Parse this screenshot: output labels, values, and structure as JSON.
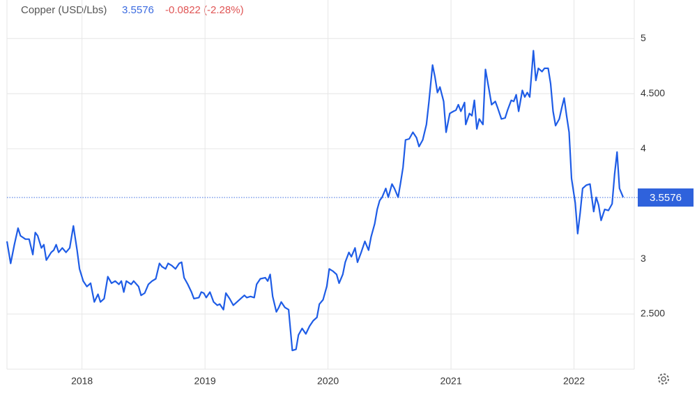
{
  "chart_data": {
    "type": "line",
    "title": "Copper (USD/Lbs)",
    "price": 3.5576,
    "change": "-0.0822 (-2.28%)",
    "xlim": [
      2017.39,
      2022.49
    ],
    "xticks": [
      2018,
      2019,
      2020,
      2021,
      2022
    ],
    "ylim": [
      2,
      5.35
    ],
    "yticks": [
      {
        "value": 2.5,
        "label": "2.500"
      },
      3,
      {
        "value": 4.5,
        "label": "4.500"
      },
      4,
      5
    ],
    "grid": true,
    "x": [
      2017.39,
      2017.42,
      2017.45,
      2017.48,
      2017.5,
      2017.54,
      2017.57,
      2017.6,
      2017.62,
      2017.64,
      2017.67,
      2017.69,
      2017.71,
      2017.75,
      2017.77,
      2017.79,
      2017.81,
      2017.84,
      2017.87,
      2017.9,
      2017.93,
      2017.96,
      2017.98,
      2018.01,
      2018.04,
      2018.07,
      2018.1,
      2018.13,
      2018.15,
      2018.18,
      2018.21,
      2018.24,
      2018.27,
      2018.3,
      2018.32,
      2018.34,
      2018.36,
      2018.4,
      2018.42,
      2018.46,
      2018.48,
      2018.51,
      2018.54,
      2018.57,
      2018.6,
      2018.63,
      2018.65,
      2018.68,
      2018.7,
      2018.73,
      2018.76,
      2018.79,
      2018.81,
      2018.83,
      2018.86,
      2018.89,
      2018.91,
      2018.95,
      2018.97,
      2018.99,
      2019.01,
      2019.04,
      2019.07,
      2019.1,
      2019.12,
      2019.15,
      2019.17,
      2019.2,
      2019.23,
      2019.26,
      2019.29,
      2019.32,
      2019.34,
      2019.37,
      2019.4,
      2019.42,
      2019.45,
      2019.49,
      2019.51,
      2019.53,
      2019.55,
      2019.58,
      2019.6,
      2019.62,
      2019.65,
      2019.68,
      2019.71,
      2019.74,
      2019.76,
      2019.79,
      2019.82,
      2019.85,
      2019.88,
      2019.91,
      2019.93,
      2019.96,
      2019.99,
      2020.01,
      2020.04,
      2020.07,
      2020.09,
      2020.12,
      2020.14,
      2020.17,
      2020.19,
      2020.22,
      2020.24,
      2020.27,
      2020.3,
      2020.33,
      2020.35,
      2020.38,
      2020.4,
      2020.42,
      2020.44,
      2020.47,
      2020.49,
      2020.52,
      2020.54,
      2020.57,
      2020.59,
      2020.61,
      2020.63,
      2020.66,
      2020.69,
      2020.72,
      2020.74,
      2020.77,
      2020.8,
      2020.82,
      2020.85,
      2020.87,
      2020.89,
      2020.91,
      2020.94,
      2020.96,
      2020.99,
      2021.02,
      2021.04,
      2021.06,
      2021.08,
      2021.11,
      2021.12,
      2021.15,
      2021.17,
      2021.19,
      2021.21,
      2021.23,
      2021.26,
      2021.28,
      2021.31,
      2021.33,
      2021.36,
      2021.38,
      2021.41,
      2021.44,
      2021.46,
      2021.49,
      2021.51,
      2021.53,
      2021.55,
      2021.58,
      2021.6,
      2021.62,
      2021.64,
      2021.67,
      2021.69,
      2021.71,
      2021.74,
      2021.76,
      2021.79,
      2021.81,
      2021.83,
      2021.85,
      2021.88,
      2021.9,
      2021.92,
      2021.94,
      2021.96,
      2021.98,
      2022.01,
      2022.03,
      2022.05,
      2022.07,
      2022.1,
      2022.13,
      2022.16,
      2022.18,
      2022.2,
      2022.22,
      2022.25,
      2022.28,
      2022.31,
      2022.33,
      2022.35,
      2022.37,
      2022.4
    ],
    "series": [
      {
        "color": "#1e5ce6",
        "values": [
          3.16,
          2.96,
          3.13,
          3.28,
          3.21,
          3.18,
          3.18,
          3.04,
          3.24,
          3.21,
          3.1,
          3.13,
          2.99,
          3.06,
          3.08,
          3.13,
          3.06,
          3.1,
          3.06,
          3.1,
          3.3,
          3.08,
          2.91,
          2.8,
          2.75,
          2.78,
          2.61,
          2.68,
          2.61,
          2.64,
          2.84,
          2.78,
          2.8,
          2.77,
          2.8,
          2.7,
          2.8,
          2.77,
          2.8,
          2.75,
          2.67,
          2.69,
          2.77,
          2.8,
          2.82,
          2.96,
          2.93,
          2.91,
          2.96,
          2.94,
          2.91,
          2.96,
          2.97,
          2.83,
          2.77,
          2.7,
          2.64,
          2.65,
          2.7,
          2.69,
          2.65,
          2.7,
          2.61,
          2.58,
          2.59,
          2.54,
          2.69,
          2.64,
          2.58,
          2.61,
          2.64,
          2.67,
          2.65,
          2.66,
          2.65,
          2.77,
          2.82,
          2.83,
          2.8,
          2.86,
          2.66,
          2.52,
          2.56,
          2.61,
          2.56,
          2.54,
          2.17,
          2.18,
          2.31,
          2.37,
          2.32,
          2.39,
          2.44,
          2.47,
          2.59,
          2.63,
          2.75,
          2.91,
          2.89,
          2.86,
          2.78,
          2.86,
          2.97,
          3.06,
          3.02,
          3.1,
          2.97,
          3.06,
          3.16,
          3.08,
          3.2,
          3.32,
          3.45,
          3.53,
          3.56,
          3.64,
          3.56,
          3.68,
          3.64,
          3.56,
          3.69,
          3.83,
          4.08,
          4.09,
          4.15,
          4.1,
          4.02,
          4.08,
          4.22,
          4.42,
          4.76,
          4.65,
          4.51,
          4.56,
          4.43,
          4.15,
          4.32,
          4.34,
          4.35,
          4.4,
          4.34,
          4.42,
          4.22,
          4.32,
          4.3,
          4.44,
          4.18,
          4.27,
          4.22,
          4.72,
          4.53,
          4.4,
          4.43,
          4.37,
          4.27,
          4.28,
          4.35,
          4.44,
          4.43,
          4.49,
          4.34,
          4.53,
          4.47,
          4.51,
          4.47,
          4.89,
          4.62,
          4.73,
          4.7,
          4.73,
          4.73,
          4.59,
          4.34,
          4.21,
          4.27,
          4.37,
          4.46,
          4.3,
          4.15,
          3.73,
          3.51,
          3.23,
          3.42,
          3.64,
          3.67,
          3.68,
          3.43,
          3.56,
          3.49,
          3.35,
          3.45,
          3.44,
          3.5,
          3.77,
          3.97,
          3.64,
          3.56
        ]
      }
    ]
  }
}
